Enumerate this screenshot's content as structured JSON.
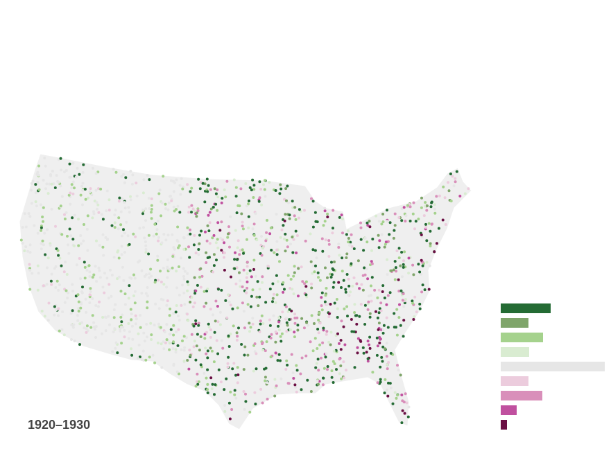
{
  "title": "1920–1930",
  "legend": {
    "type": "bar",
    "values": [
      72,
      40,
      61,
      41,
      150,
      40,
      60,
      23,
      9
    ],
    "colors": [
      "#246b34",
      "#7fa56a",
      "#a5d28d",
      "#d9ecd1",
      "#e6e6e6",
      "#ecccdd",
      "#d98fba",
      "#c0509f",
      "#6b1044"
    ],
    "xlim": [
      0,
      150
    ]
  }
}
